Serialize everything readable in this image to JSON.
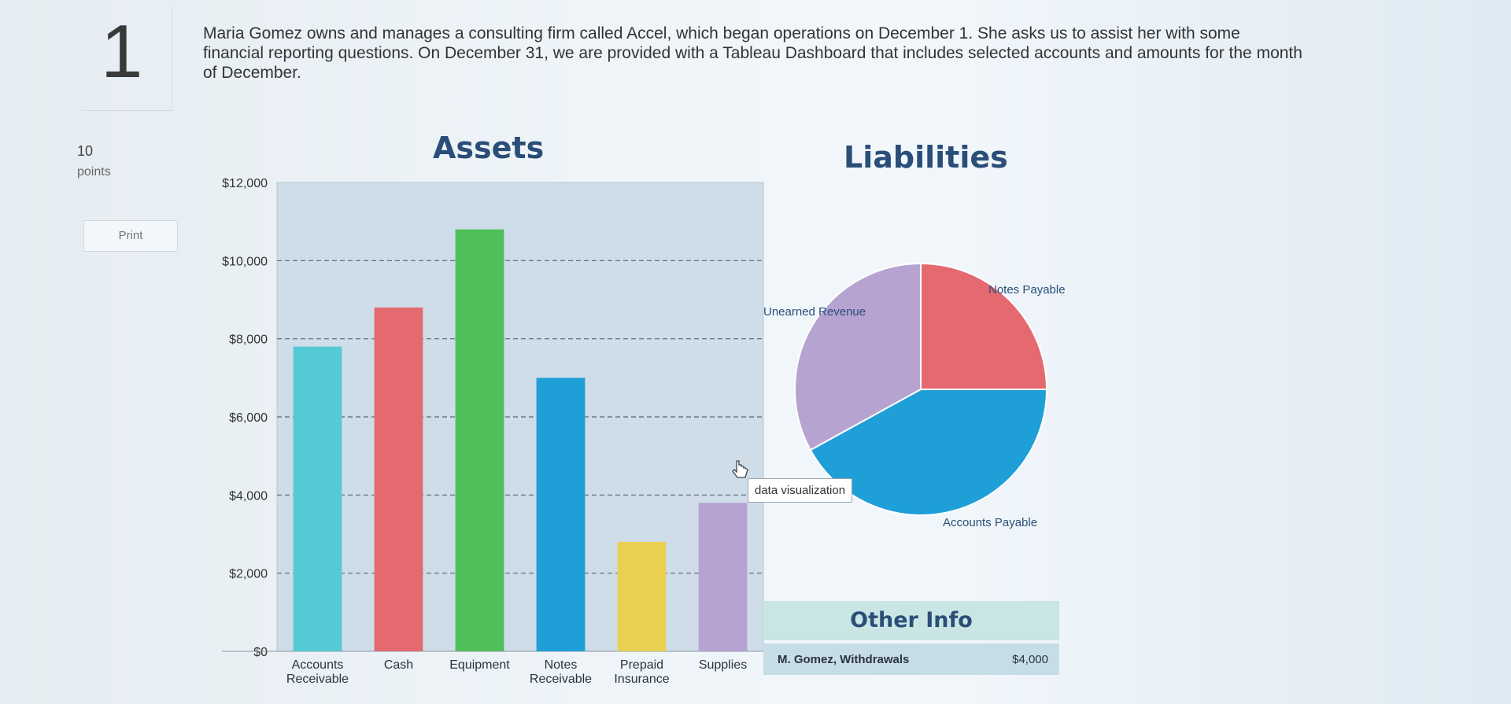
{
  "question": {
    "number": "1",
    "text": "Maria Gomez owns and manages a consulting firm called Accel, which began operations on December 1. She asks us to assist her with some financial reporting questions. On December 31, we are provided with a Tableau Dashboard that includes selected accounts and amounts for the month of December.",
    "points_value": "10",
    "points_label": "points",
    "print_label": "Print"
  },
  "tooltip": "data visualization",
  "colors": {
    "title": "#2a4e78",
    "accounts_receivable": "#55c9d6",
    "cash": "#e46a70",
    "equipment": "#50be5a",
    "notes_receivable": "#1f9fd8",
    "prepaid_insurance": "#e9cf52",
    "supplies": "#b6a3d2"
  },
  "other_info": {
    "title": "Other Info",
    "rows": [
      {
        "label": "M. Gomez, Withdrawals",
        "value": "$4,000"
      }
    ]
  },
  "chart_data": [
    {
      "type": "bar",
      "title": "Assets",
      "categories": [
        "Accounts Receivable",
        "Cash",
        "Equipment",
        "Notes Receivable",
        "Prepaid Insurance",
        "Supplies"
      ],
      "values": [
        7800,
        8800,
        10800,
        7000,
        2800,
        3800
      ],
      "ylim": [
        0,
        12000
      ],
      "yticks": [
        "$0",
        "$2,000",
        "$4,000",
        "$6,000",
        "$8,000",
        "$10,000",
        "$12,000"
      ],
      "grid": true
    },
    {
      "type": "pie",
      "title": "Liabilities",
      "slices": [
        {
          "label": "Notes Payable",
          "value": 25,
          "color": "#e46a70"
        },
        {
          "label": "Accounts Payable",
          "value": 42,
          "color": "#1f9fd8"
        },
        {
          "label": "Unearned Revenue",
          "value": 33,
          "color": "#b6a3d2"
        }
      ]
    }
  ]
}
